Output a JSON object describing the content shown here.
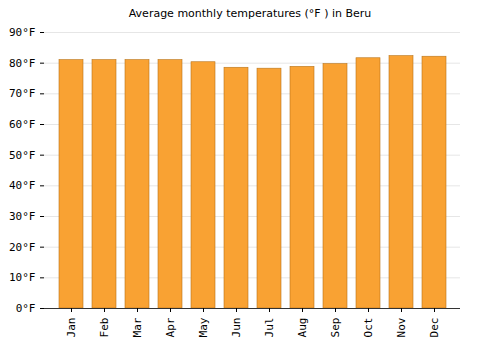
{
  "chart_data": {
    "type": "bar",
    "title": "Average monthly temperatures (°F ) in Beru",
    "categories": [
      "Jan",
      "Feb",
      "Mar",
      "Apr",
      "May",
      "Jun",
      "Jul",
      "Aug",
      "Sep",
      "Oct",
      "Nov",
      "Dec"
    ],
    "values": [
      81,
      81,
      81,
      81,
      80.3,
      78.5,
      78.2,
      78.8,
      79.7,
      81.6,
      82.3,
      82.1
    ],
    "color": "#f9a233",
    "ylim": [
      0,
      90
    ],
    "yticks": [
      {
        "value": 0,
        "label": "0°F"
      },
      {
        "value": 10,
        "label": "10°F"
      },
      {
        "value": 20,
        "label": "20°F"
      },
      {
        "value": 30,
        "label": "30°F"
      },
      {
        "value": 40,
        "label": "40°F"
      },
      {
        "value": 50,
        "label": "50°F"
      },
      {
        "value": 60,
        "label": "60°F"
      },
      {
        "value": 70,
        "label": "70°F"
      },
      {
        "value": 80,
        "label": "80°F"
      },
      {
        "value": 90,
        "label": "90°F"
      }
    ],
    "grid": true
  }
}
